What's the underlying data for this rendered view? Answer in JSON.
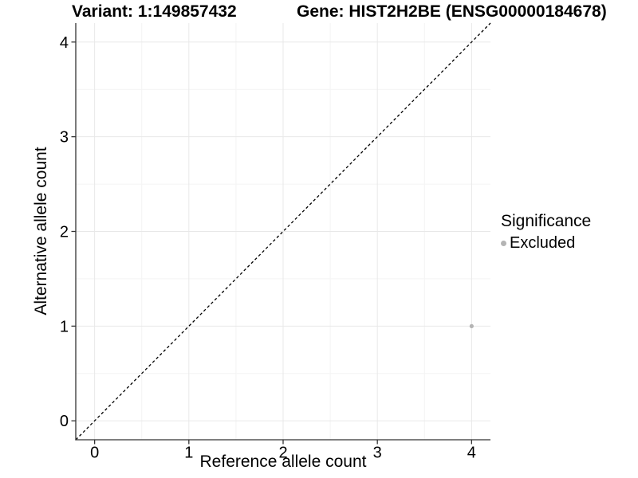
{
  "titles": {
    "variant": "Variant: 1:149857432",
    "gene": "Gene: HIST2H2BE (ENSG00000184678)"
  },
  "chart_data": {
    "type": "scatter",
    "title_left": "Variant: 1:149857432",
    "title_right": "Gene: HIST2H2BE (ENSG00000184678)",
    "xlabel": "Reference allele count",
    "ylabel": "Alternative allele count",
    "xlim": [
      -0.2,
      4.2
    ],
    "ylim": [
      -0.2,
      4.2
    ],
    "x_ticks": [
      0,
      1,
      2,
      3,
      4
    ],
    "y_ticks": [
      0,
      1,
      2,
      3,
      4
    ],
    "x_minor_ticks": [
      0.5,
      1.5,
      2.5,
      3.5
    ],
    "y_minor_ticks": [
      0.5,
      1.5,
      2.5,
      3.5
    ],
    "grid": "major and minor, light gray, white panel background",
    "points": [
      {
        "x": 4,
        "y": 1,
        "series": "Excluded"
      }
    ],
    "reference_line": {
      "type": "identity y=x",
      "style": "dashed",
      "color": "#000000",
      "from": -0.2,
      "to": 4.2
    },
    "legend": {
      "title": "Significance",
      "position": "right",
      "items": [
        {
          "label": "Excluded",
          "color": "#b4b4b4"
        }
      ]
    },
    "colors": {
      "point": "#b4b4b4",
      "axis": "#333333",
      "tick_label": "#000000",
      "grid_major": "#e8e8e8",
      "grid_minor": "#f4f4f4",
      "background": "#ffffff"
    }
  }
}
